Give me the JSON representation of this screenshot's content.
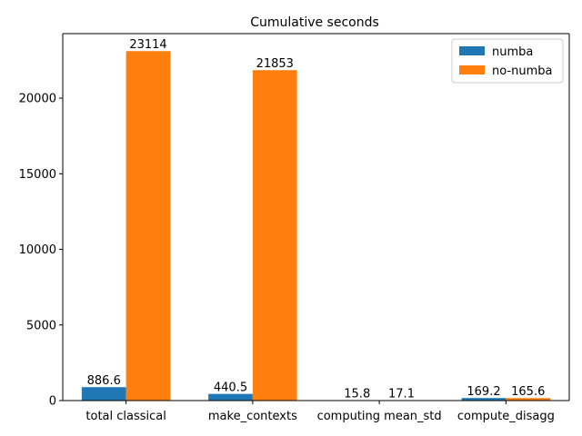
{
  "chart_data": {
    "type": "bar",
    "title": "Cumulative seconds",
    "xlabel": "",
    "ylabel": "",
    "categories": [
      "total classical",
      "make_contexts",
      "computing mean_std",
      "compute_disagg"
    ],
    "series": [
      {
        "name": "numba",
        "color": "#1f77b4",
        "values": [
          886.6,
          440.5,
          15.8,
          169.2
        ],
        "labels": [
          "886.6",
          "440.5",
          "15.8",
          "169.2"
        ]
      },
      {
        "name": "no-numba",
        "color": "#ff7f0e",
        "values": [
          23114,
          21853,
          17.1,
          165.6
        ],
        "labels": [
          "23114",
          "21853",
          "17.1",
          "165.6"
        ]
      }
    ],
    "ylim": [
      0,
      24270
    ],
    "yticks": [
      0,
      5000,
      10000,
      15000,
      20000
    ],
    "grid": false,
    "legend": "top-right"
  }
}
